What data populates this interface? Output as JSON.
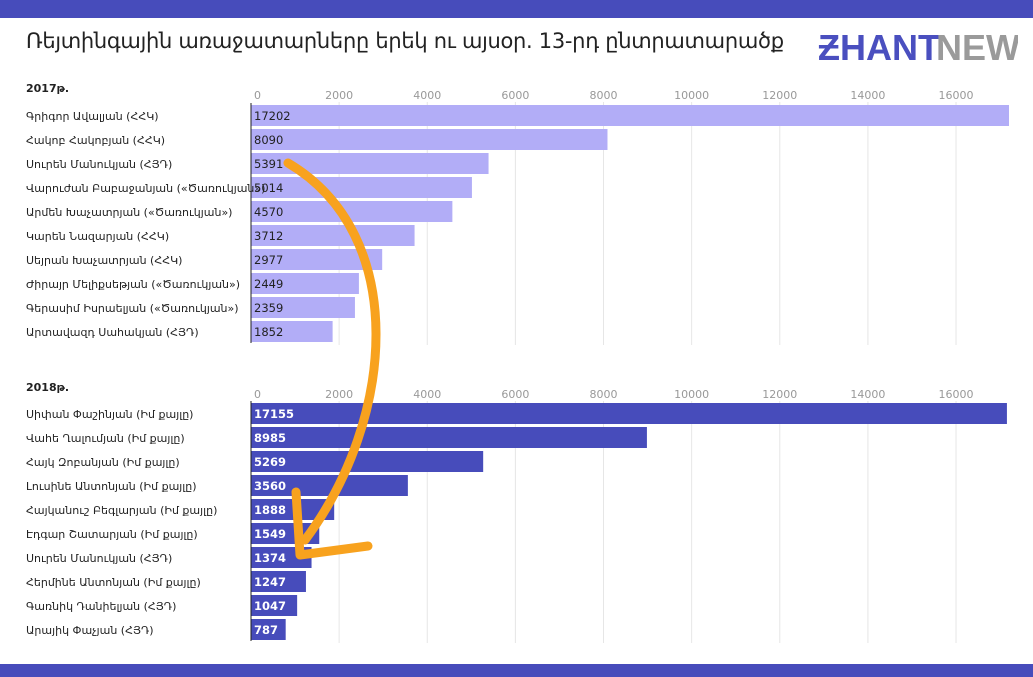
{
  "header": {
    "title": "Ռեյտինգային առաջատարները երեկ ու այսօր. 13-րդ ընտրատարածք",
    "logo_left": "ƵHANT",
    "logo_right": "NEWS"
  },
  "colors": {
    "frame": "#474cbb",
    "bar_2017": "#b2adf7",
    "bar_2018": "#474cbb",
    "arrow": "#f8a21e",
    "logo_left": "#4a4fbf",
    "logo_right": "#9a9a9a"
  },
  "chart_data": [
    {
      "type": "bar",
      "orientation": "horizontal",
      "title": "2017թ.",
      "xlim": [
        0,
        17202
      ],
      "ticks": [
        0,
        2000,
        4000,
        6000,
        8000,
        10000,
        12000,
        14000,
        16000
      ],
      "categories": [
        "Գրիգոր Ավալյան (ՀՀԿ)",
        "Հակոբ Հակոբյան (ՀՀԿ)",
        "Սուրեն Մանուկյան (ՀՅԴ)",
        "Վարուժան Բաբաջանյան («Ծառուկյան»)",
        "Արմեն Խաչատրյան («Ծառուկյան»)",
        "Կարեն Նազարյան (ՀՀԿ)",
        "Սեյրան Խաչատրյան (ՀՀԿ)",
        "Ժիրայր Մելիքսեթյան («Ծառուկյան»)",
        "Գերասիմ Իսրաելյան («Ծառուկյան»)",
        "Արտավազդ Սահակյան (ՀՅԴ)"
      ],
      "values": [
        17202,
        8090,
        5391,
        5014,
        4570,
        3712,
        2977,
        2449,
        2359,
        1852
      ]
    },
    {
      "type": "bar",
      "orientation": "horizontal",
      "title": "2018թ.",
      "xlim": [
        0,
        17202
      ],
      "ticks": [
        0,
        2000,
        4000,
        6000,
        8000,
        10000,
        12000,
        14000,
        16000
      ],
      "categories": [
        "Սիփան Փաշինյան (Իմ քայլը)",
        "Վահե Ղալումյան (Իմ քայլը)",
        "Հայկ Զոբանյան (Իմ քայլը)",
        "Լուսինե Անտոնյան (Իմ քայլը)",
        "Հայկանուշ Բեգլարյան (Իմ քայլը)",
        "Էդգար Շատարյան (Իմ քայլը)",
        "Սուրեն Մանուկյան (ՀՅԴ)",
        "Հերմինե Անտոնյան (Իմ քայլը)",
        "Գառնիկ Դանիելյան (ՀՅԴ)",
        "Արայիկ Փաչյան (ՀՅԴ)"
      ],
      "values": [
        17155,
        8985,
        5269,
        3560,
        1888,
        1549,
        1374,
        1247,
        1047,
        787
      ]
    }
  ]
}
